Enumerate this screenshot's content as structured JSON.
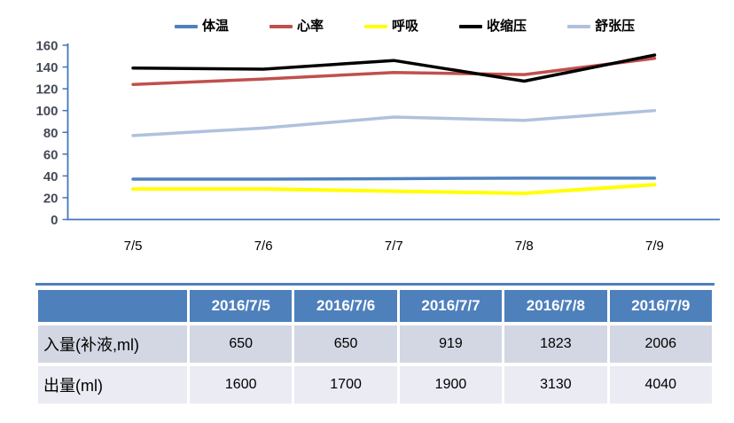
{
  "chart_data": {
    "type": "line",
    "x": [
      "7/5",
      "7/6",
      "7/7",
      "7/8",
      "7/9"
    ],
    "series": [
      {
        "id": "temperature",
        "name": "体温",
        "color": "#4F81BD",
        "width": 3.5,
        "values": [
          37,
          37,
          37.5,
          38,
          38
        ]
      },
      {
        "id": "heart-rate",
        "name": "心率",
        "color": "#C0504D",
        "width": 3.5,
        "values": [
          124,
          129,
          135,
          133,
          148
        ]
      },
      {
        "id": "respiration",
        "name": "呼吸",
        "color": "#FFFF00",
        "width": 4,
        "values": [
          28,
          28,
          26,
          24,
          32
        ]
      },
      {
        "id": "systolic-pressure",
        "name": "收缩压",
        "color": "#000000",
        "width": 3.5,
        "values": [
          139,
          138,
          146,
          127,
          151
        ]
      },
      {
        "id": "diastolic-pressure",
        "name": "舒张压",
        "color": "#AFC1DE",
        "width": 3.5,
        "values": [
          77,
          84,
          94,
          91,
          100
        ]
      }
    ],
    "title": "",
    "xlabel": "",
    "ylabel": "",
    "ylim": [
      0,
      160
    ],
    "yticks": [
      0,
      20,
      40,
      60,
      80,
      100,
      120,
      140,
      160
    ],
    "grid": false,
    "legend_position": "top"
  },
  "table": {
    "headers": [
      "",
      "2016/7/5",
      "2016/7/6",
      "2016/7/7",
      "2016/7/8",
      "2016/7/9"
    ],
    "rows": [
      {
        "id": "intake",
        "label": "入量(补液,ml)",
        "values": [
          "650",
          "650",
          "919",
          "1823",
          "2006"
        ]
      },
      {
        "id": "output",
        "label": "出量(ml)",
        "values": [
          "1600",
          "1700",
          "1900",
          "3130",
          "4040"
        ]
      }
    ]
  },
  "colors": {
    "axis": "#4576B6",
    "tick_label": "#454A58",
    "table_header_bg": "#4E80BC",
    "table_top_border": "#4E80BC",
    "table_row_odd_bg": "#D3D7E3",
    "table_row_even_bg": "#EAEBF3",
    "table_header_text": "#FFFFFF"
  }
}
